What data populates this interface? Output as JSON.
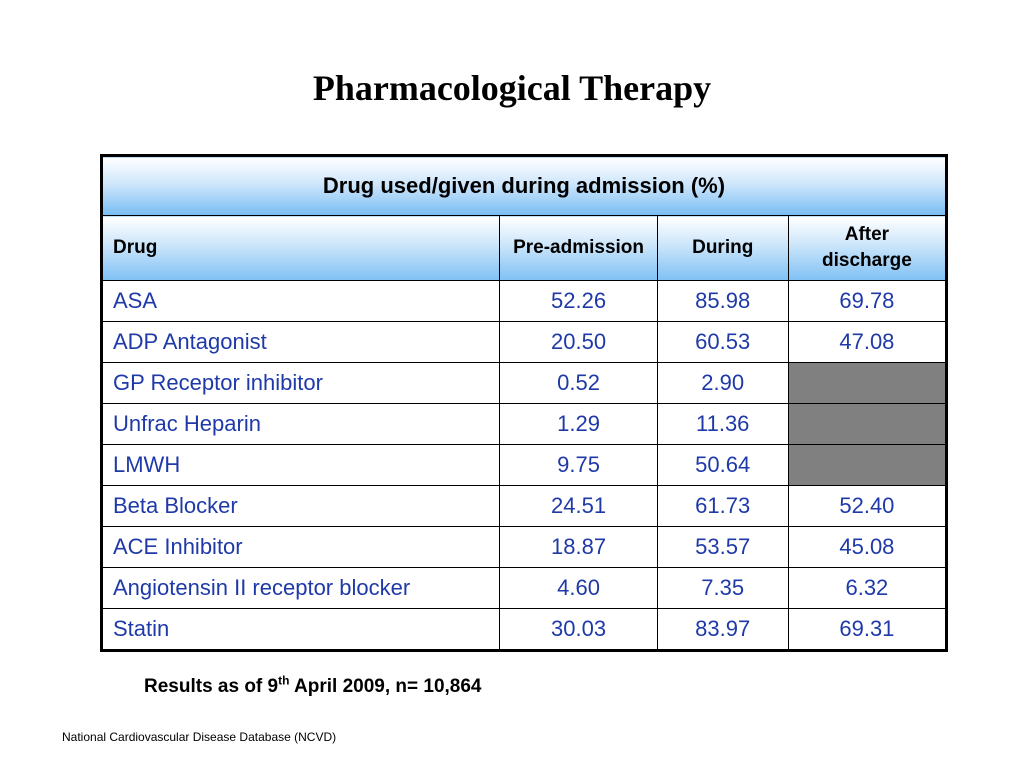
{
  "slide": {
    "title": "Pharmacological Therapy"
  },
  "table": {
    "group_header": "Drug used/given during admission (%)",
    "columns": {
      "drug": "Drug",
      "pre": "Pre-admission",
      "during": "During",
      "after": "After discharge"
    },
    "rows": [
      {
        "drug": "ASA",
        "pre": "52.26",
        "during": "85.98",
        "after": "69.78"
      },
      {
        "drug": "ADP Antagonist",
        "pre": "20.50",
        "during": "60.53",
        "after": "47.08"
      },
      {
        "drug": "GP Receptor inhibitor",
        "pre": "0.52",
        "during": "2.90",
        "after": null
      },
      {
        "drug": "Unfrac Heparin",
        "pre": "1.29",
        "during": "11.36",
        "after": null
      },
      {
        "drug": "LMWH",
        "pre": "9.75",
        "during": "50.64",
        "after": null
      },
      {
        "drug": "Beta Blocker",
        "pre": "24.51",
        "during": "61.73",
        "after": "52.40"
      },
      {
        "drug": "ACE Inhibitor",
        "pre": "18.87",
        "during": "53.57",
        "after": "45.08"
      },
      {
        "drug": "Angiotensin II receptor blocker",
        "pre": "4.60",
        "during": "7.35",
        "after": "6.32"
      },
      {
        "drug": "Statin",
        "pre": "30.03",
        "during": "83.97",
        "after": "69.31"
      }
    ]
  },
  "footnote": {
    "prefix": "Results as of 9",
    "superscript": "th",
    "suffix": " April 2009, n= 10,864"
  },
  "source": "National Cardiovascular Disease Database (NCVD)",
  "colors": {
    "data_text": "#1f3aa8",
    "header_gradient_bottom": "#78bdf3",
    "not_applicable_fill": "#808080"
  }
}
